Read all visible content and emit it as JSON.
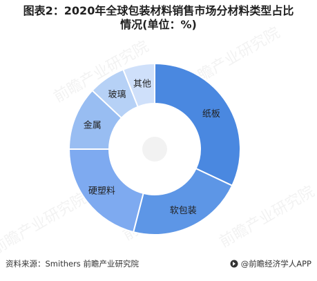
{
  "title": "图表2：2020年全球包装材料销售市场分材料类型占比情况(单位：%)",
  "source_label": "资料来源：Smithers 前瞻产业研究院",
  "brand_label": "@前瞻经济学人APP",
  "watermark_text": "前瞻产业研究院",
  "colors": {
    "纸板": "#4a88e0",
    "软包装": "#5d96e6",
    "硬塑料": "#7eaaf0",
    "金属": "#98bdf2",
    "玻璃": "#b6d1f6",
    "其他": "#cfe0fa"
  },
  "chart_data": {
    "type": "pie",
    "donut": true,
    "categories": [
      "纸板",
      "软包装",
      "硬塑料",
      "金属",
      "玻璃",
      "其他"
    ],
    "values": [
      32,
      22,
      21,
      12,
      7,
      6
    ],
    "title": "图表2：2020年全球包装材料销售市场分材料类型占比情况(单位：%)",
    "legend": "none",
    "data_labels": "category names on segments"
  }
}
